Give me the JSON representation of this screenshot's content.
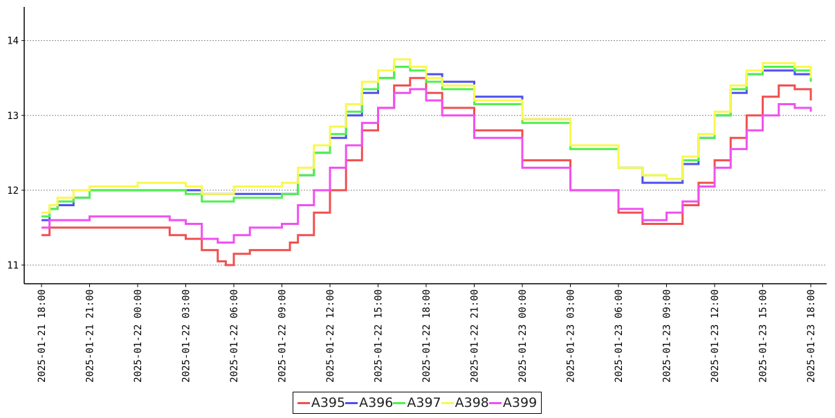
{
  "chart_data": {
    "type": "line",
    "title": "",
    "xlabel": "",
    "ylabel": "",
    "x_range": [
      "2025-01-21 18:00",
      "2025-01-23 18:00"
    ],
    "x_ticks": [
      "2025-01-21 18:00",
      "2025-01-21 21:00",
      "2025-01-22 00:00",
      "2025-01-22 03:00",
      "2025-01-22 06:00",
      "2025-01-22 09:00",
      "2025-01-22 12:00",
      "2025-01-22 15:00",
      "2025-01-22 18:00",
      "2025-01-22 21:00",
      "2025-01-23 00:00",
      "2025-01-23 03:00",
      "2025-01-23 06:00",
      "2025-01-23 09:00",
      "2025-01-23 12:00",
      "2025-01-23 15:00",
      "2025-01-23 18:00"
    ],
    "y_ticks": [
      "11",
      "12",
      "13",
      "14"
    ],
    "ylim": [
      10.75,
      14.45
    ],
    "grid": "horizontal-dotted",
    "legend_position": "bottom",
    "series": [
      {
        "name": "A395",
        "color": "#f05050",
        "points": [
          [
            "2025-01-21 18:00",
            11.4
          ],
          [
            "2025-01-21 18:30",
            11.5
          ],
          [
            "2025-01-21 21:00",
            11.5
          ],
          [
            "2025-01-22 00:00",
            11.5
          ],
          [
            "2025-01-22 02:00",
            11.4
          ],
          [
            "2025-01-22 03:00",
            11.35
          ],
          [
            "2025-01-22 04:00",
            11.2
          ],
          [
            "2025-01-22 05:00",
            11.05
          ],
          [
            "2025-01-22 05:30",
            11.0
          ],
          [
            "2025-01-22 06:00",
            11.15
          ],
          [
            "2025-01-22 07:00",
            11.2
          ],
          [
            "2025-01-22 08:00",
            11.2
          ],
          [
            "2025-01-22 09:00",
            11.2
          ],
          [
            "2025-01-22 09:30",
            11.3
          ],
          [
            "2025-01-22 10:00",
            11.4
          ],
          [
            "2025-01-22 11:00",
            11.7
          ],
          [
            "2025-01-22 12:00",
            12.0
          ],
          [
            "2025-01-22 13:00",
            12.4
          ],
          [
            "2025-01-22 14:00",
            12.8
          ],
          [
            "2025-01-22 15:00",
            13.1
          ],
          [
            "2025-01-22 16:00",
            13.4
          ],
          [
            "2025-01-22 17:00",
            13.5
          ],
          [
            "2025-01-22 18:00",
            13.3
          ],
          [
            "2025-01-22 19:00",
            13.1
          ],
          [
            "2025-01-22 21:00",
            12.8
          ],
          [
            "2025-01-23 00:00",
            12.4
          ],
          [
            "2025-01-23 03:00",
            12.0
          ],
          [
            "2025-01-23 06:00",
            11.7
          ],
          [
            "2025-01-23 07:30",
            11.55
          ],
          [
            "2025-01-23 09:00",
            11.55
          ],
          [
            "2025-01-23 10:00",
            11.8
          ],
          [
            "2025-01-23 11:00",
            12.1
          ],
          [
            "2025-01-23 12:00",
            12.4
          ],
          [
            "2025-01-23 13:00",
            12.7
          ],
          [
            "2025-01-23 14:00",
            13.0
          ],
          [
            "2025-01-23 15:00",
            13.25
          ],
          [
            "2025-01-23 16:00",
            13.4
          ],
          [
            "2025-01-23 17:00",
            13.35
          ],
          [
            "2025-01-23 18:00",
            13.2
          ]
        ]
      },
      {
        "name": "A396",
        "color": "#5050f0",
        "points": [
          [
            "2025-01-21 18:00",
            11.6
          ],
          [
            "2025-01-21 18:30",
            11.75
          ],
          [
            "2025-01-21 19:00",
            11.8
          ],
          [
            "2025-01-21 20:00",
            11.9
          ],
          [
            "2025-01-21 21:00",
            12.0
          ],
          [
            "2025-01-22 00:00",
            12.0
          ],
          [
            "2025-01-22 03:00",
            12.0
          ],
          [
            "2025-01-22 04:00",
            11.95
          ],
          [
            "2025-01-22 06:00",
            11.95
          ],
          [
            "2025-01-22 09:00",
            11.95
          ],
          [
            "2025-01-22 10:00",
            12.2
          ],
          [
            "2025-01-22 11:00",
            12.5
          ],
          [
            "2025-01-22 12:00",
            12.7
          ],
          [
            "2025-01-22 13:00",
            13.0
          ],
          [
            "2025-01-22 14:00",
            13.3
          ],
          [
            "2025-01-22 15:00",
            13.5
          ],
          [
            "2025-01-22 16:00",
            13.65
          ],
          [
            "2025-01-22 17:00",
            13.65
          ],
          [
            "2025-01-22 18:00",
            13.55
          ],
          [
            "2025-01-22 19:00",
            13.45
          ],
          [
            "2025-01-22 21:00",
            13.25
          ],
          [
            "2025-01-23 00:00",
            12.95
          ],
          [
            "2025-01-23 03:00",
            12.6
          ],
          [
            "2025-01-23 06:00",
            12.3
          ],
          [
            "2025-01-23 07:30",
            12.1
          ],
          [
            "2025-01-23 09:00",
            12.1
          ],
          [
            "2025-01-23 10:00",
            12.35
          ],
          [
            "2025-01-23 11:00",
            12.7
          ],
          [
            "2025-01-23 12:00",
            13.0
          ],
          [
            "2025-01-23 13:00",
            13.3
          ],
          [
            "2025-01-23 14:00",
            13.55
          ],
          [
            "2025-01-23 15:00",
            13.6
          ],
          [
            "2025-01-23 16:00",
            13.6
          ],
          [
            "2025-01-23 17:00",
            13.55
          ],
          [
            "2025-01-23 18:00",
            13.5
          ]
        ]
      },
      {
        "name": "A397",
        "color": "#50f050",
        "points": [
          [
            "2025-01-21 18:00",
            11.65
          ],
          [
            "2025-01-21 18:30",
            11.75
          ],
          [
            "2025-01-21 19:00",
            11.85
          ],
          [
            "2025-01-21 20:00",
            11.9
          ],
          [
            "2025-01-21 21:00",
            12.0
          ],
          [
            "2025-01-22 00:00",
            12.0
          ],
          [
            "2025-01-22 03:00",
            11.95
          ],
          [
            "2025-01-22 04:00",
            11.85
          ],
          [
            "2025-01-22 06:00",
            11.9
          ],
          [
            "2025-01-22 09:00",
            11.95
          ],
          [
            "2025-01-22 10:00",
            12.2
          ],
          [
            "2025-01-22 11:00",
            12.5
          ],
          [
            "2025-01-22 12:00",
            12.75
          ],
          [
            "2025-01-22 13:00",
            13.05
          ],
          [
            "2025-01-22 14:00",
            13.35
          ],
          [
            "2025-01-22 15:00",
            13.5
          ],
          [
            "2025-01-22 16:00",
            13.65
          ],
          [
            "2025-01-22 17:00",
            13.6
          ],
          [
            "2025-01-22 18:00",
            13.45
          ],
          [
            "2025-01-22 19:00",
            13.35
          ],
          [
            "2025-01-22 21:00",
            13.15
          ],
          [
            "2025-01-23 00:00",
            12.9
          ],
          [
            "2025-01-23 03:00",
            12.55
          ],
          [
            "2025-01-23 06:00",
            12.3
          ],
          [
            "2025-01-23 07:30",
            12.2
          ],
          [
            "2025-01-23 09:00",
            12.15
          ],
          [
            "2025-01-23 10:00",
            12.4
          ],
          [
            "2025-01-23 11:00",
            12.7
          ],
          [
            "2025-01-23 12:00",
            13.0
          ],
          [
            "2025-01-23 13:00",
            13.35
          ],
          [
            "2025-01-23 14:00",
            13.55
          ],
          [
            "2025-01-23 15:00",
            13.65
          ],
          [
            "2025-01-23 16:00",
            13.65
          ],
          [
            "2025-01-23 17:00",
            13.6
          ],
          [
            "2025-01-23 18:00",
            13.45
          ]
        ]
      },
      {
        "name": "A398",
        "color": "#f8f850",
        "points": [
          [
            "2025-01-21 18:00",
            11.7
          ],
          [
            "2025-01-21 18:30",
            11.8
          ],
          [
            "2025-01-21 19:00",
            11.9
          ],
          [
            "2025-01-21 20:00",
            12.0
          ],
          [
            "2025-01-21 21:00",
            12.05
          ],
          [
            "2025-01-22 00:00",
            12.1
          ],
          [
            "2025-01-22 03:00",
            12.05
          ],
          [
            "2025-01-22 04:00",
            11.95
          ],
          [
            "2025-01-22 06:00",
            12.05
          ],
          [
            "2025-01-22 09:00",
            12.1
          ],
          [
            "2025-01-22 10:00",
            12.3
          ],
          [
            "2025-01-22 11:00",
            12.6
          ],
          [
            "2025-01-22 12:00",
            12.85
          ],
          [
            "2025-01-22 13:00",
            13.15
          ],
          [
            "2025-01-22 14:00",
            13.45
          ],
          [
            "2025-01-22 15:00",
            13.6
          ],
          [
            "2025-01-22 16:00",
            13.75
          ],
          [
            "2025-01-22 17:00",
            13.65
          ],
          [
            "2025-01-22 18:00",
            13.5
          ],
          [
            "2025-01-22 19:00",
            13.4
          ],
          [
            "2025-01-22 21:00",
            13.2
          ],
          [
            "2025-01-23 00:00",
            12.95
          ],
          [
            "2025-01-23 03:00",
            12.6
          ],
          [
            "2025-01-23 06:00",
            12.3
          ],
          [
            "2025-01-23 07:30",
            12.2
          ],
          [
            "2025-01-23 09:00",
            12.15
          ],
          [
            "2025-01-23 10:00",
            12.45
          ],
          [
            "2025-01-23 11:00",
            12.75
          ],
          [
            "2025-01-23 12:00",
            13.05
          ],
          [
            "2025-01-23 13:00",
            13.4
          ],
          [
            "2025-01-23 14:00",
            13.6
          ],
          [
            "2025-01-23 15:00",
            13.7
          ],
          [
            "2025-01-23 16:00",
            13.7
          ],
          [
            "2025-01-23 17:00",
            13.65
          ],
          [
            "2025-01-23 18:00",
            13.5
          ]
        ]
      },
      {
        "name": "A399",
        "color": "#f050f0",
        "points": [
          [
            "2025-01-21 18:00",
            11.5
          ],
          [
            "2025-01-21 18:30",
            11.6
          ],
          [
            "2025-01-21 21:00",
            11.65
          ],
          [
            "2025-01-22 00:00",
            11.65
          ],
          [
            "2025-01-22 02:00",
            11.6
          ],
          [
            "2025-01-22 03:00",
            11.55
          ],
          [
            "2025-01-22 04:00",
            11.35
          ],
          [
            "2025-01-22 05:00",
            11.3
          ],
          [
            "2025-01-22 06:00",
            11.4
          ],
          [
            "2025-01-22 07:00",
            11.5
          ],
          [
            "2025-01-22 08:00",
            11.5
          ],
          [
            "2025-01-22 09:00",
            11.55
          ],
          [
            "2025-01-22 10:00",
            11.8
          ],
          [
            "2025-01-22 11:00",
            12.0
          ],
          [
            "2025-01-22 12:00",
            12.3
          ],
          [
            "2025-01-22 13:00",
            12.6
          ],
          [
            "2025-01-22 14:00",
            12.9
          ],
          [
            "2025-01-22 15:00",
            13.1
          ],
          [
            "2025-01-22 16:00",
            13.3
          ],
          [
            "2025-01-22 17:00",
            13.35
          ],
          [
            "2025-01-22 18:00",
            13.2
          ],
          [
            "2025-01-22 19:00",
            13.0
          ],
          [
            "2025-01-22 21:00",
            12.7
          ],
          [
            "2025-01-23 00:00",
            12.3
          ],
          [
            "2025-01-23 03:00",
            12.0
          ],
          [
            "2025-01-23 06:00",
            11.75
          ],
          [
            "2025-01-23 07:30",
            11.6
          ],
          [
            "2025-01-23 09:00",
            11.7
          ],
          [
            "2025-01-23 10:00",
            11.85
          ],
          [
            "2025-01-23 11:00",
            12.05
          ],
          [
            "2025-01-23 12:00",
            12.3
          ],
          [
            "2025-01-23 13:00",
            12.55
          ],
          [
            "2025-01-23 14:00",
            12.8
          ],
          [
            "2025-01-23 15:00",
            13.0
          ],
          [
            "2025-01-23 16:00",
            13.15
          ],
          [
            "2025-01-23 17:00",
            13.1
          ],
          [
            "2025-01-23 18:00",
            13.05
          ]
        ]
      }
    ]
  }
}
